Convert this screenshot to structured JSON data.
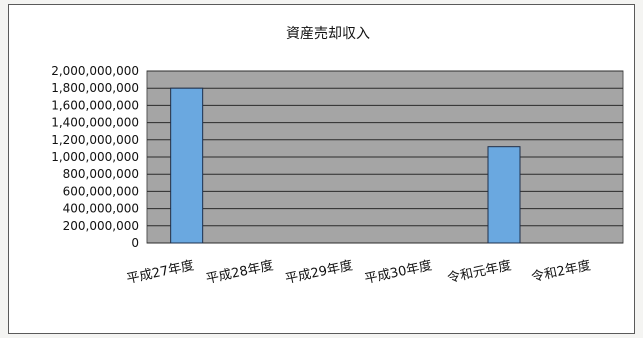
{
  "chart_data": {
    "type": "bar",
    "title": "資産売却収入",
    "categories": [
      "平成27年度",
      "平成28年度",
      "平成29年度",
      "平成30年度",
      "令和元年度",
      "令和2年度"
    ],
    "values": [
      1800000000,
      0,
      0,
      0,
      1120000000,
      0
    ],
    "ylim": [
      0,
      2000000000
    ],
    "yticks": [
      0,
      200000000,
      400000000,
      600000000,
      800000000,
      1000000000,
      1200000000,
      1400000000,
      1600000000,
      1800000000,
      2000000000
    ],
    "ytick_labels": [
      "0",
      "200,000,000",
      "400,000,000",
      "600,000,000",
      "800,000,000",
      "1,000,000,000",
      "1,200,000,000",
      "1,400,000,000",
      "1,600,000,000",
      "1,800,000,000",
      "2,000,000,000"
    ],
    "xlabel": "",
    "ylabel": "",
    "grid": true,
    "legend": "none",
    "colors": {
      "bar": "#6aa8e0",
      "bar_edge": "#1f2f4a",
      "plot_bg": "#a5a5a5",
      "grid": "#2b2b2b"
    }
  }
}
